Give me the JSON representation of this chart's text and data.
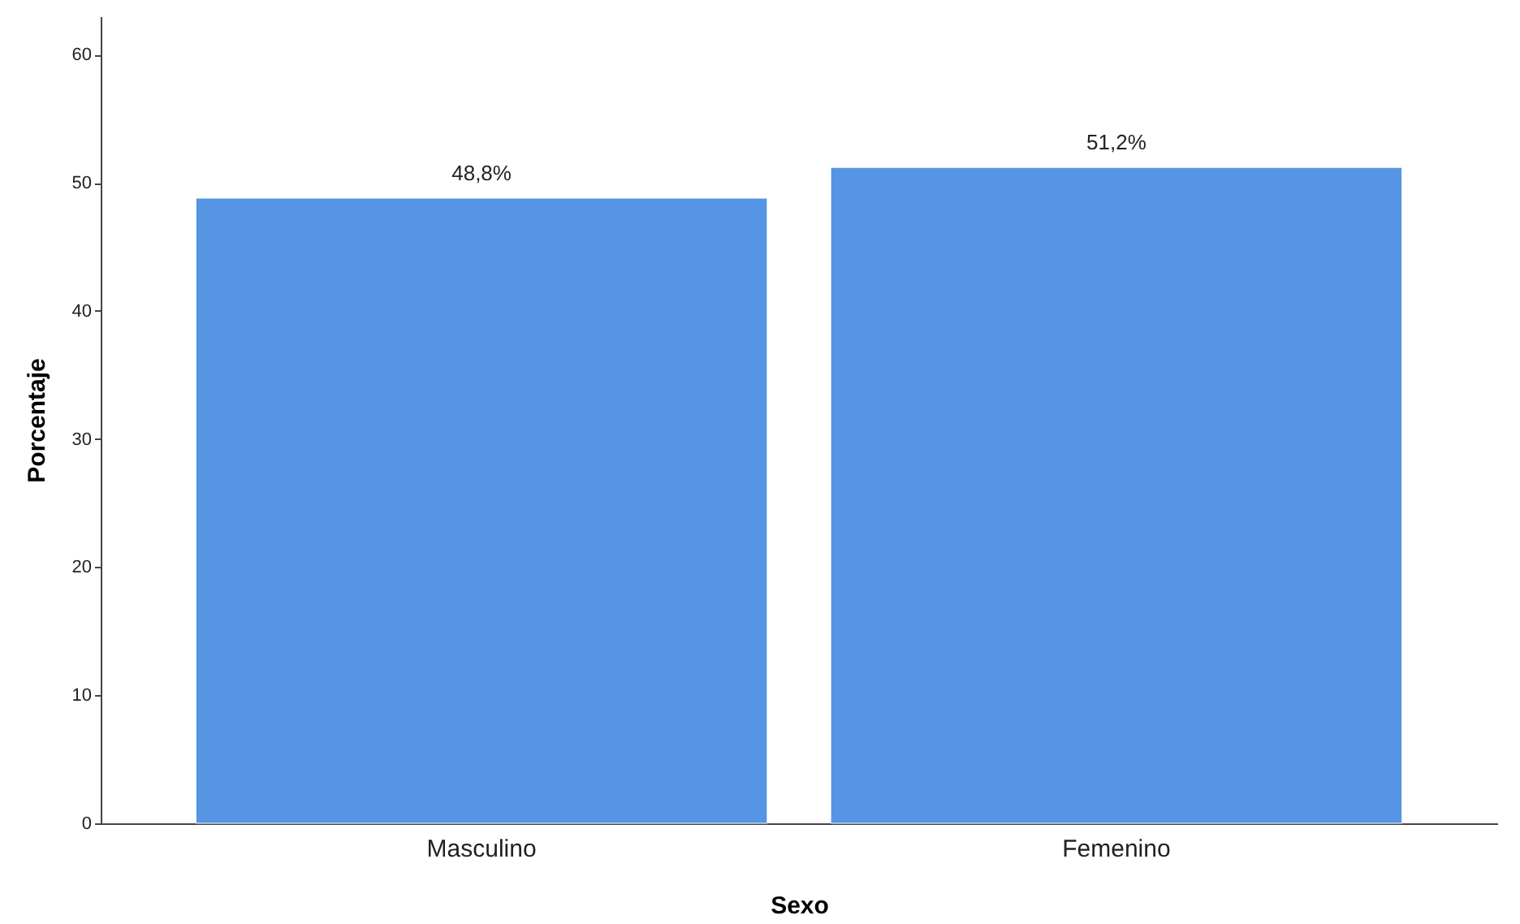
{
  "chart_data": {
    "type": "bar",
    "xlabel": "Sexo",
    "ylabel": "Porcentaje",
    "categories": [
      "Masculino",
      "Femenino"
    ],
    "values": [
      48.8,
      51.2
    ],
    "value_labels": [
      "48,8%",
      "51,2%"
    ],
    "color": "#5595e3",
    "ylim": [
      0,
      63
    ],
    "yticks": [
      0,
      10,
      20,
      30,
      40,
      50,
      60
    ],
    "grid": false
  }
}
